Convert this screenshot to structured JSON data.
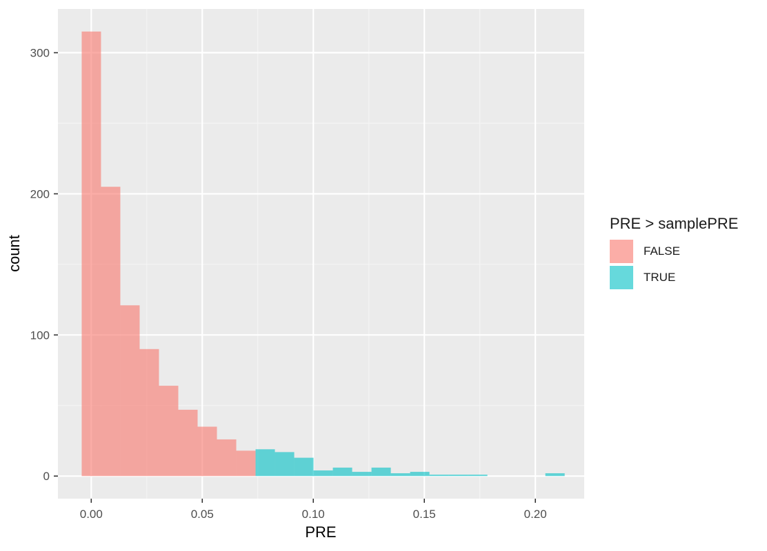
{
  "chart_data": {
    "type": "histogram",
    "xlabel": "PRE",
    "ylabel": "count",
    "xlim": [
      -0.015,
      0.222
    ],
    "ylim": [
      -16,
      331
    ],
    "x_ticks": [
      0.0,
      0.05,
      0.1,
      0.15,
      0.2
    ],
    "x_tick_labels": [
      "0.00",
      "0.05",
      "0.10",
      "0.15",
      "0.20"
    ],
    "y_ticks": [
      0,
      100,
      200,
      300
    ],
    "y_tick_labels": [
      "0",
      "100",
      "200",
      "300"
    ],
    "grid": true,
    "legend": {
      "title": "PRE > samplePRE",
      "position": "right",
      "items": [
        {
          "label": "FALSE",
          "color": "#F8766D"
        },
        {
          "label": "TRUE",
          "color": "#00BFC4"
        }
      ]
    },
    "fill_alpha": 0.6,
    "bin_width": 0.0087,
    "bins": [
      {
        "x0": -0.0043,
        "x1": 0.0044,
        "count": 315,
        "group": "FALSE"
      },
      {
        "x0": 0.0044,
        "x1": 0.0131,
        "count": 205,
        "group": "FALSE"
      },
      {
        "x0": 0.0131,
        "x1": 0.0218,
        "count": 121,
        "group": "FALSE"
      },
      {
        "x0": 0.0218,
        "x1": 0.0305,
        "count": 90,
        "group": "FALSE"
      },
      {
        "x0": 0.0305,
        "x1": 0.0392,
        "count": 64,
        "group": "FALSE"
      },
      {
        "x0": 0.0392,
        "x1": 0.0479,
        "count": 47,
        "group": "FALSE"
      },
      {
        "x0": 0.0479,
        "x1": 0.0566,
        "count": 35,
        "group": "FALSE"
      },
      {
        "x0": 0.0566,
        "x1": 0.0653,
        "count": 26,
        "group": "FALSE"
      },
      {
        "x0": 0.0653,
        "x1": 0.074,
        "count": 18,
        "group": "FALSE"
      },
      {
        "x0": 0.074,
        "x1": 0.0827,
        "count": 19,
        "group": "TRUE"
      },
      {
        "x0": 0.0827,
        "x1": 0.0914,
        "count": 17,
        "group": "TRUE"
      },
      {
        "x0": 0.0914,
        "x1": 0.1001,
        "count": 13,
        "group": "TRUE"
      },
      {
        "x0": 0.1001,
        "x1": 0.1088,
        "count": 4,
        "group": "TRUE"
      },
      {
        "x0": 0.1088,
        "x1": 0.1175,
        "count": 6,
        "group": "TRUE"
      },
      {
        "x0": 0.1175,
        "x1": 0.1262,
        "count": 3,
        "group": "TRUE"
      },
      {
        "x0": 0.1262,
        "x1": 0.1349,
        "count": 6,
        "group": "TRUE"
      },
      {
        "x0": 0.1349,
        "x1": 0.1436,
        "count": 2,
        "group": "TRUE"
      },
      {
        "x0": 0.1436,
        "x1": 0.1523,
        "count": 3,
        "group": "TRUE"
      },
      {
        "x0": 0.1523,
        "x1": 0.161,
        "count": 1,
        "group": "TRUE"
      },
      {
        "x0": 0.161,
        "x1": 0.1697,
        "count": 1,
        "group": "TRUE"
      },
      {
        "x0": 0.1697,
        "x1": 0.1784,
        "count": 1,
        "group": "TRUE"
      },
      {
        "x0": 0.2045,
        "x1": 0.2132,
        "count": 2,
        "group": "TRUE"
      }
    ]
  }
}
